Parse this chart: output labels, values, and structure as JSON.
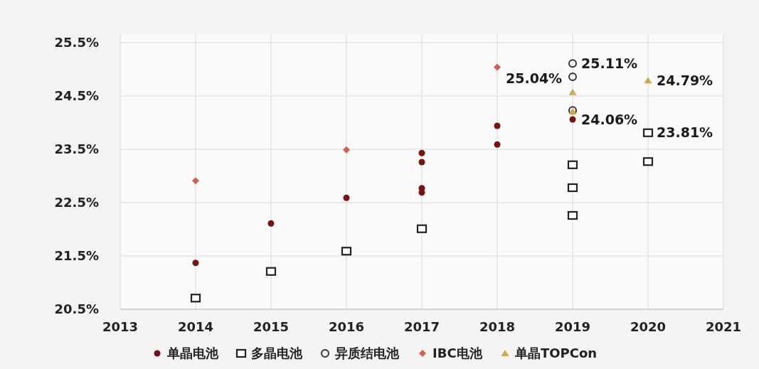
{
  "chart_data": {
    "type": "scatter",
    "xlim": [
      2013,
      2021
    ],
    "xticks": [
      2013,
      2014,
      2015,
      2016,
      2017,
      2018,
      2019,
      2020,
      2021
    ],
    "ylim": [
      20.5,
      25.5
    ],
    "yticks": [
      {
        "value": 20.5,
        "label": "20.5%"
      },
      {
        "value": 21.5,
        "label": "21.5%"
      },
      {
        "value": 22.5,
        "label": "22.5%"
      },
      {
        "value": 23.5,
        "label": "23.5%"
      },
      {
        "value": 24.5,
        "label": "24.5%"
      },
      {
        "value": 25.5,
        "label": "25.5%"
      }
    ],
    "grid": true,
    "legend": "bottom",
    "series": [
      {
        "name": "单晶电池",
        "color": "#7a1212",
        "marker": "circle",
        "x": [
          2014,
          2015,
          2016,
          2017,
          2017,
          2017,
          2017,
          2018,
          2018,
          2019
        ],
        "values": [
          21.37,
          22.11,
          22.59,
          23.43,
          23.26,
          22.77,
          22.69,
          23.94,
          23.59,
          24.06
        ],
        "value_labels": [
          null,
          null,
          null,
          null,
          null,
          null,
          null,
          null,
          null,
          "24.06%"
        ]
      },
      {
        "name": "多晶电池",
        "color": "#222222",
        "marker": "square",
        "x": [
          2014,
          2015,
          2016,
          2017,
          2019,
          2019,
          2019,
          2020,
          2020
        ],
        "values": [
          20.71,
          21.21,
          21.59,
          22.01,
          23.21,
          22.78,
          22.26,
          23.81,
          23.27
        ],
        "value_labels": [
          null,
          null,
          null,
          null,
          null,
          null,
          null,
          "23.81%",
          null
        ]
      },
      {
        "name": "异质结电池",
        "color": "#333333",
        "marker": "hollow-circle",
        "x": [
          2019,
          2019,
          2019
        ],
        "values": [
          25.11,
          24.86,
          24.23
        ],
        "value_labels": [
          "25.11%",
          null,
          null
        ]
      },
      {
        "name": "IBC电池",
        "color": "#d0604f",
        "marker": "diamond",
        "x": [
          2014,
          2016,
          2018
        ],
        "values": [
          22.91,
          23.49,
          25.04
        ],
        "value_labels": [
          null,
          null,
          "25.04%"
        ]
      },
      {
        "name": "单晶TOPCon",
        "color": "#d4a84b",
        "marker": "triangle",
        "x": [
          2019,
          2019,
          2020
        ],
        "values": [
          24.57,
          24.21,
          24.79
        ],
        "value_labels": [
          null,
          null,
          "24.79%"
        ]
      }
    ]
  }
}
